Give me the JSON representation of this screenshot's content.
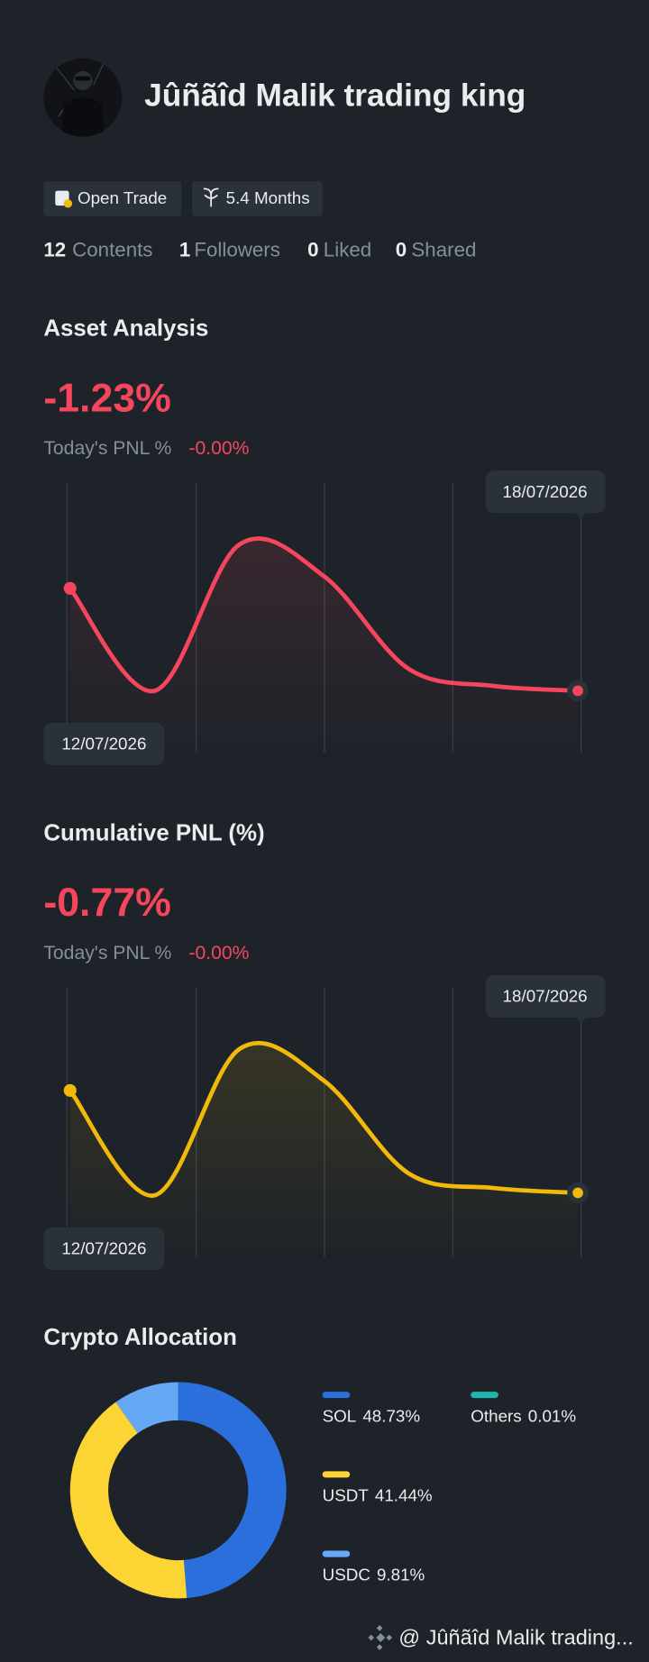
{
  "profile": {
    "name": "Jûñãîd Malik trading king",
    "badges": [
      "Open Trade",
      "5.4 Months"
    ],
    "stats": [
      {
        "value": 12,
        "label": "Contents"
      },
      {
        "value": 1,
        "label": "Followers"
      },
      {
        "value": 0,
        "label": "Liked"
      },
      {
        "value": 0,
        "label": "Shared"
      }
    ]
  },
  "chart_data": [
    {
      "type": "line",
      "title": "Asset Analysis",
      "pnl_value": -1.23,
      "pnl_label": "-1.23%",
      "subtitle": "Today's PNL %",
      "today_value": -0.0,
      "today_label": "-0.00%",
      "categories": [
        "12/07/2026",
        null,
        null,
        null,
        null,
        null,
        "18/07/2026"
      ],
      "values": [
        63,
        21,
        81,
        68,
        30,
        23,
        21
      ],
      "ylim": [
        0,
        100
      ],
      "color": "#f6465d"
    },
    {
      "type": "line",
      "title": "Cumulative PNL (%)",
      "pnl_value": -0.77,
      "pnl_label": "-0.77%",
      "subtitle": "Today's PNL %",
      "today_value": -0.0,
      "today_label": "-0.00%",
      "categories": [
        "12/07/2026",
        null,
        null,
        null,
        null,
        null,
        "18/07/2026"
      ],
      "values": [
        64,
        21,
        81,
        68,
        30,
        24,
        22
      ],
      "ylim": [
        0,
        100
      ],
      "color": "#f0b90b"
    },
    {
      "type": "pie",
      "title": "Crypto Allocation",
      "categories": [
        "SOL",
        "USDT",
        "USDC",
        "Others"
      ],
      "values": [
        48.73,
        41.44,
        9.81,
        0.01
      ],
      "value_labels": [
        "48.73%",
        "41.44%",
        "9.81%",
        "0.01%"
      ],
      "colors": [
        "#2a6fdb",
        "#fcd535",
        "#65a8f5",
        "#1fb5b0"
      ]
    }
  ],
  "watermark": "@ Jûñãîd Malik trading..."
}
